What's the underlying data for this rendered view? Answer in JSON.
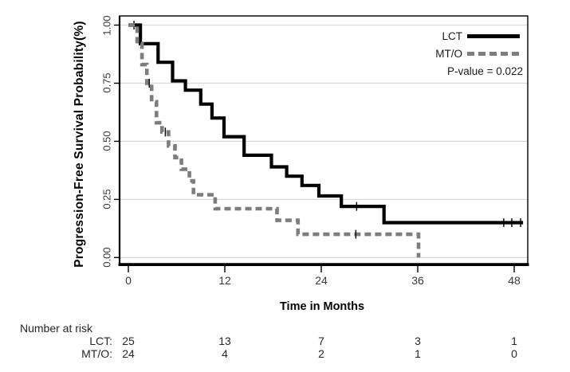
{
  "chart_data": {
    "type": "line",
    "subtype": "kaplan-meier-step-curve",
    "title": "",
    "xlabel": "Time in Months",
    "ylabel": "Progression-Free Survival Probability(%)",
    "x_ticks": [
      0,
      12,
      24,
      36,
      48
    ],
    "y_tick_values": [
      0,
      0.25,
      0.5,
      0.75,
      1.0
    ],
    "y_tick_labels": [
      "0.00",
      "0.25",
      "0.50",
      "0.75",
      "1.00"
    ],
    "xlim": [
      0,
      49.7
    ],
    "ylim": [
      0.0,
      1.0
    ],
    "grid": "horizontal-only",
    "legend_position": "top-right-inside",
    "pvalue_label": "P-value = 0.022",
    "series": [
      {
        "name": "LCT",
        "line_style": "solid",
        "color": "#000000",
        "steps": [
          [
            0,
            1.0
          ],
          [
            1.5,
            0.92
          ],
          [
            3.7,
            0.84
          ],
          [
            5.5,
            0.76
          ],
          [
            7.1,
            0.72
          ],
          [
            9.0,
            0.66
          ],
          [
            10.4,
            0.6
          ],
          [
            11.9,
            0.52
          ],
          [
            14.4,
            0.44
          ],
          [
            17.8,
            0.39
          ],
          [
            19.7,
            0.35
          ],
          [
            21.6,
            0.31
          ],
          [
            23.7,
            0.265
          ],
          [
            26.5,
            0.22
          ],
          [
            31.8,
            0.15
          ]
        ],
        "end_month": 49.1,
        "censor_marks": [
          [
            0.7,
            1.0
          ],
          [
            28.4,
            0.22
          ],
          [
            46.7,
            0.15
          ],
          [
            47.7,
            0.15
          ],
          [
            48.8,
            0.15
          ]
        ]
      },
      {
        "name": "MT/O",
        "line_style": "dashed",
        "color": "#7d7d7d",
        "steps": [
          [
            0,
            1.0
          ],
          [
            1.1,
            0.92
          ],
          [
            1.7,
            0.83
          ],
          [
            2.3,
            0.75
          ],
          [
            2.9,
            0.67
          ],
          [
            3.5,
            0.58
          ],
          [
            4.2,
            0.54
          ],
          [
            5.0,
            0.48
          ],
          [
            5.8,
            0.43
          ],
          [
            6.6,
            0.38
          ],
          [
            7.6,
            0.33
          ],
          [
            8.1,
            0.27
          ],
          [
            10.8,
            0.21
          ],
          [
            18.5,
            0.16
          ],
          [
            21.1,
            0.1
          ],
          [
            36.1,
            0.0
          ]
        ],
        "end_month": 36.1,
        "censor_marks": [
          [
            2.6,
            0.75
          ],
          [
            4.6,
            0.54
          ],
          [
            28.3,
            0.1
          ]
        ]
      }
    ],
    "risk_table": {
      "title": "Number at risk",
      "times": [
        0,
        12,
        24,
        36,
        48
      ],
      "rows": [
        {
          "label": "LCT:",
          "counts": [
            25,
            13,
            7,
            3,
            1
          ]
        },
        {
          "label": "MT/O:",
          "counts": [
            24,
            4,
            2,
            1,
            0
          ]
        }
      ]
    }
  }
}
